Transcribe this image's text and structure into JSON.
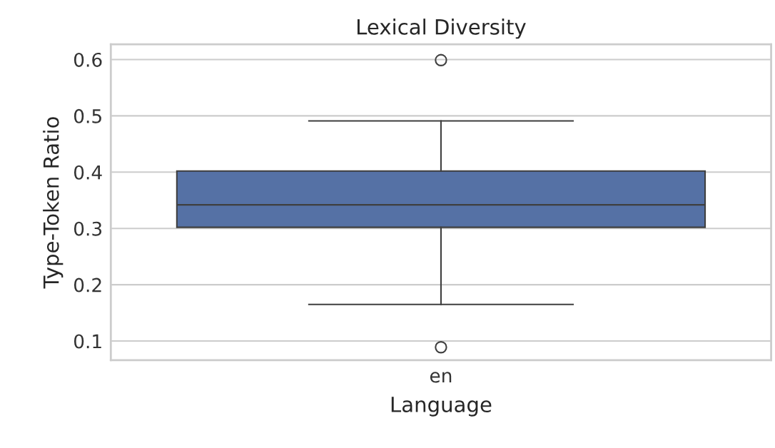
{
  "chart_data": {
    "type": "box",
    "title": "Lexical Diversity",
    "xlabel": "Language",
    "ylabel": "Type-Token Ratio",
    "categories": [
      "en"
    ],
    "boxes": [
      {
        "low": 0.165,
        "q1": 0.302,
        "median": 0.342,
        "q3": 0.402,
        "high": 0.491,
        "outliers": [
          0.599,
          0.089
        ]
      }
    ],
    "color": "#5571a5",
    "ylim": [
      0.066,
      0.627
    ],
    "yticks": [
      0.1,
      0.2,
      0.3,
      0.4,
      0.5,
      0.6
    ],
    "grid": "y"
  }
}
